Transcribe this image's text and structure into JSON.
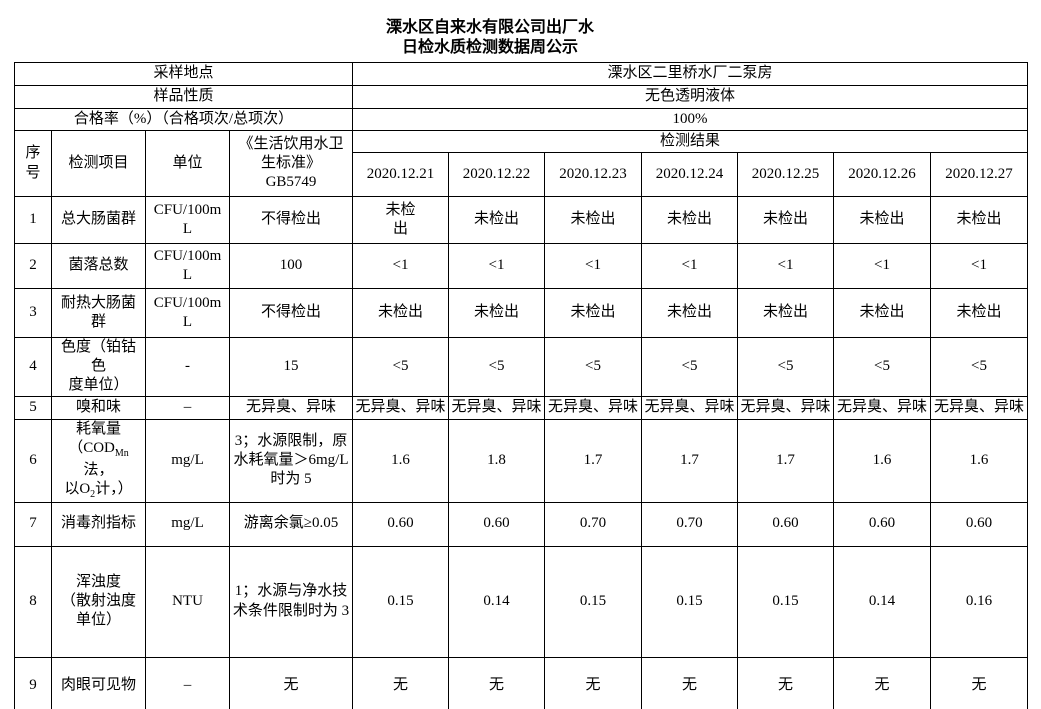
{
  "title": {
    "line1": "溧水区自来水有限公司出厂水",
    "line2": "日检水质检测数据周公示"
  },
  "info": {
    "sampling_site_label": "采样地点",
    "sampling_site_value": "溧水区二里桥水厂二泵房",
    "sample_nature_label": "样品性质",
    "sample_nature_value": "无色透明液体",
    "pass_rate_label": "合格率（%）（合格项次/总项次）",
    "pass_rate_value": "100%"
  },
  "header": {
    "seq": "序\n号",
    "item": "检测项目",
    "unit": "单位",
    "standard": "《生活饮用水卫\n生标准》\nGB5749",
    "result": "检测结果",
    "dates": [
      "2020.12.21",
      "2020.12.22",
      "2020.12.23",
      "2020.12.24",
      "2020.12.25",
      "2020.12.26",
      "2020.12.27"
    ]
  },
  "rows": [
    {
      "seq": "1",
      "name": "总大肠菌群",
      "unit": "CFU/100m\nL",
      "standard": "不得检出",
      "values": [
        "未检\n出",
        "未检出",
        "未检出",
        "未检出",
        "未检出",
        "未检出",
        "未检出"
      ]
    },
    {
      "seq": "2",
      "name": "菌落总数",
      "unit": "CFU/100m\nL",
      "standard": "100",
      "values": [
        "<1",
        "<1",
        "<1",
        "<1",
        "<1",
        "<1",
        "<1"
      ]
    },
    {
      "seq": "3",
      "name": "耐热大肠菌\n群",
      "unit": "CFU/100m\nL",
      "standard": "不得检出",
      "values": [
        "未检出",
        "未检出",
        "未检出",
        "未检出",
        "未检出",
        "未检出",
        "未检出"
      ]
    },
    {
      "seq": "4",
      "name": "色度（铂钴色\n度单位）",
      "unit": "-",
      "standard": "15",
      "values": [
        "<5",
        "<5",
        "<5",
        "<5",
        "<5",
        "<5",
        "<5"
      ]
    },
    {
      "seq": "5",
      "name": "嗅和味",
      "unit": "–",
      "standard": "无异臭、异味",
      "values": [
        "无异臭、异味",
        "无异臭、异味",
        "无异臭、异味",
        "无异臭、异味",
        "无异臭、异味",
        "无异臭、异味",
        "无异臭、异味"
      ]
    },
    {
      "seq": "6",
      "name": [
        {
          "t": "耗氧量\n（COD"
        },
        {
          "t": "Mn",
          "sub": true
        },
        {
          "t": "法，\n以O"
        },
        {
          "t": "2",
          "sub": true
        },
        {
          "t": "计，）"
        }
      ],
      "unit": "mg/L",
      "standard": "3；水源限制，原\n水耗氧量＞6mg/L\n时为 5",
      "values": [
        "1.6",
        "1.8",
        "1.7",
        "1.7",
        "1.7",
        "1.6",
        "1.6"
      ]
    },
    {
      "seq": "7",
      "name": "消毒剂指标",
      "unit": "mg/L",
      "standard": "游离余氯≥0.05",
      "values": [
        "0.60",
        "0.60",
        "0.70",
        "0.70",
        "0.60",
        "0.60",
        "0.60"
      ]
    },
    {
      "seq": "8",
      "name": "浑浊度\n（散射浊度\n单位）",
      "unit": "NTU",
      "standard": "1；水源与净水技\n术条件限制时为 3",
      "values": [
        "0.15",
        "0.14",
        "0.15",
        "0.15",
        "0.15",
        "0.14",
        "0.16"
      ]
    },
    {
      "seq": "9",
      "name": "肉眼可见物",
      "unit": "–",
      "standard": "无",
      "values": [
        "无",
        "无",
        "无",
        "无",
        "无",
        "无",
        "无"
      ]
    }
  ]
}
